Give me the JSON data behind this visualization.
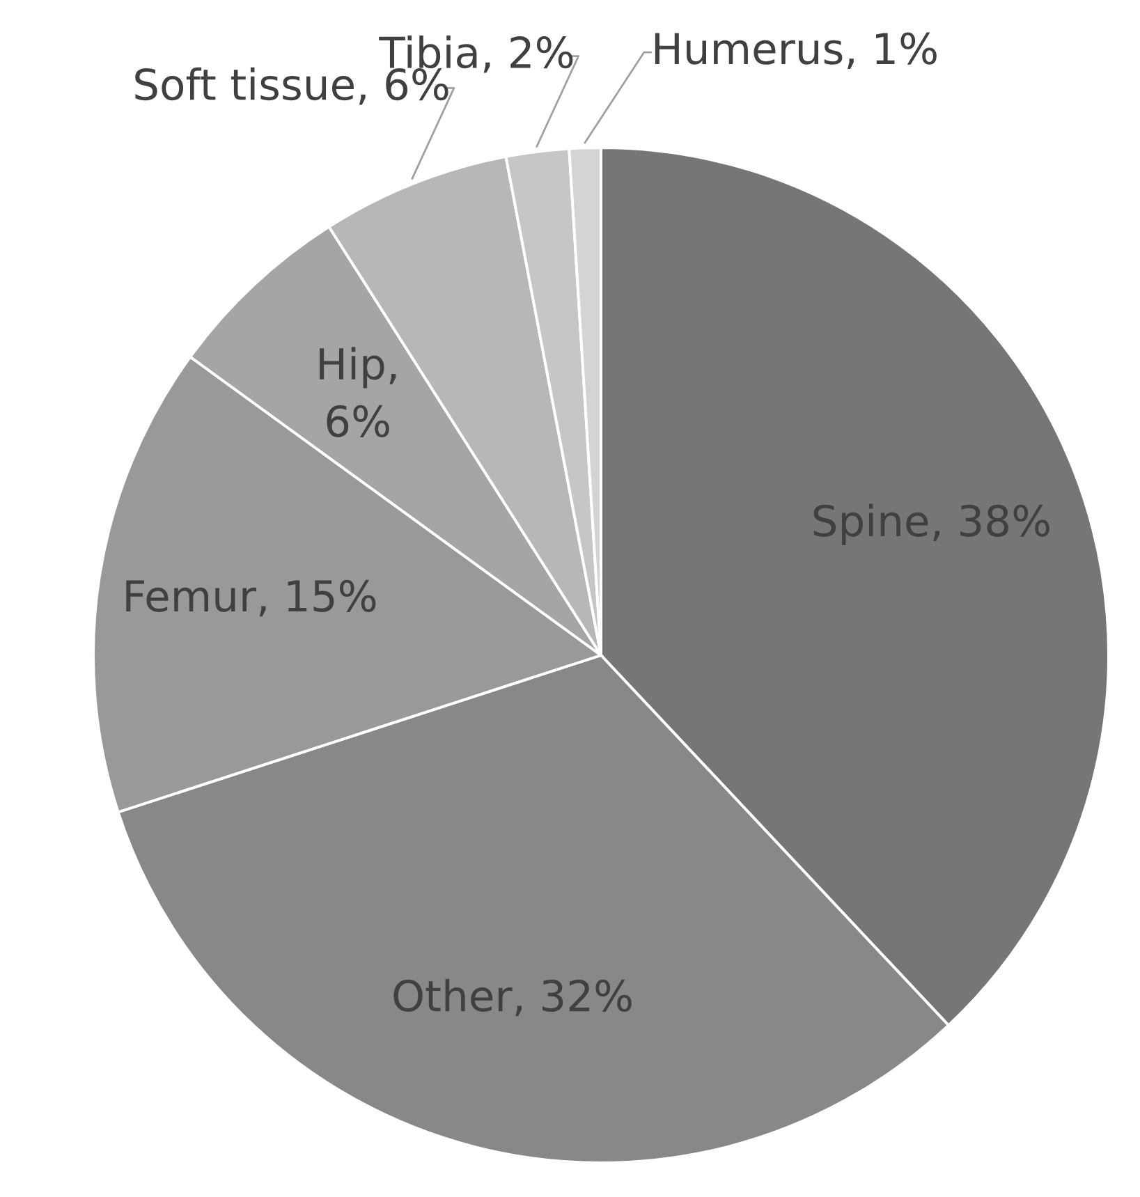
{
  "chart_data": {
    "type": "pie",
    "categories": [
      "Spine",
      "Other",
      "Femur",
      "Hip",
      "Soft tissue",
      "Tibia",
      "Humerus"
    ],
    "values": [
      38,
      32,
      15,
      6,
      6,
      2,
      1
    ],
    "colors": [
      "#767676",
      "#888888",
      "#999999",
      "#a5a5a5",
      "#b7b7b7",
      "#c6c6c6",
      "#d4d4d4"
    ],
    "value_labels": [
      ", 38%",
      ", 32%",
      ", 15%",
      ", 6%",
      ", 6%",
      ", 2%",
      ", 1%"
    ],
    "legend": false
  }
}
